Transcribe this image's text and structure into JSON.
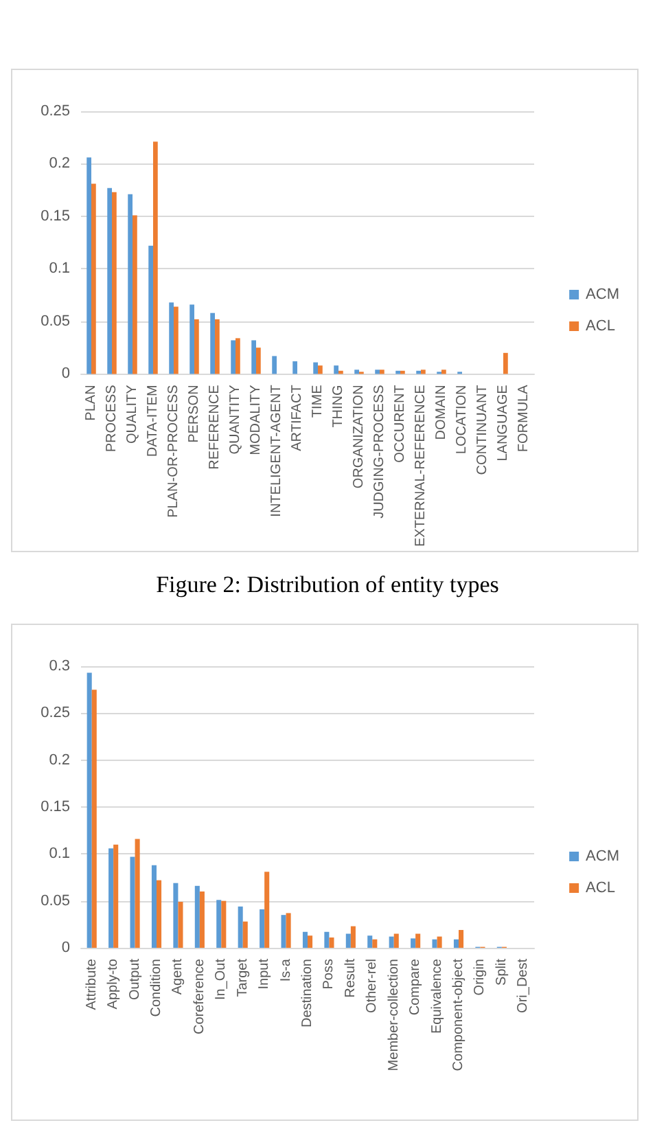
{
  "chart_data": [
    {
      "type": "bar",
      "categories": [
        "PLAN",
        "PROCESS",
        "QUALITY",
        "DATA-ITEM",
        "PLAN-OR-PROCESS",
        "PERSON",
        "REFERENCE",
        "QUANTITY",
        "MODALITY",
        "INTELIGENT-AGENT",
        "ARTIFACT",
        "TIME",
        "THING",
        "ORGANIZATION",
        "JUDGING-PROCESS",
        "OCCURENT",
        "EXTERNAL-REFERENCE",
        "DOMAIN",
        "LOCATION",
        "CONTINUANT",
        "LANGUAGE",
        "FORMULA"
      ],
      "series": [
        {
          "name": "ACM",
          "color": "#5b9bd5",
          "values": [
            0.206,
            0.177,
            0.171,
            0.122,
            0.068,
            0.066,
            0.058,
            0.032,
            0.032,
            0.017,
            0.012,
            0.011,
            0.008,
            0.004,
            0.004,
            0.003,
            0.003,
            0.002,
            0.002,
            0,
            0,
            0
          ]
        },
        {
          "name": "ACL",
          "color": "#ed7d31",
          "values": [
            0.181,
            0.173,
            0.151,
            0.221,
            0.064,
            0.052,
            0.052,
            0.034,
            0.025,
            0,
            0,
            0.008,
            0.003,
            0.002,
            0.004,
            0.003,
            0.004,
            0.004,
            0,
            0,
            0.02,
            0
          ]
        }
      ],
      "ylim": [
        0,
        0.25
      ],
      "yticks": [
        0,
        0.05,
        0.1,
        0.15,
        0.2,
        0.25
      ],
      "grid": "y",
      "legend": "right",
      "annotations": [
        "Figure 2: Distribution of entity types"
      ]
    },
    {
      "type": "bar",
      "categories": [
        "Attribute",
        "Apply-to",
        "Output",
        "Condition",
        "Agent",
        "Coreference",
        "In_Out",
        "Target",
        "Input",
        "Is-a",
        "Destination",
        "Poss",
        "Result",
        "Other-rel",
        "Member-collection",
        "Compare",
        "Equivalence",
        "Component-object",
        "Origin",
        "Split",
        "Ori_Dest"
      ],
      "series": [
        {
          "name": "ACM",
          "color": "#5b9bd5",
          "values": [
            0.293,
            0.106,
            0.097,
            0.088,
            0.069,
            0.066,
            0.051,
            0.044,
            0.041,
            0.035,
            0.017,
            0.017,
            0.015,
            0.013,
            0.012,
            0.01,
            0.009,
            0.009,
            0.001,
            0.001,
            0
          ]
        },
        {
          "name": "ACL",
          "color": "#ed7d31",
          "values": [
            0.275,
            0.11,
            0.116,
            0.072,
            0.049,
            0.06,
            0.05,
            0.028,
            0.081,
            0.037,
            0.013,
            0.011,
            0.023,
            0.009,
            0.015,
            0.015,
            0.012,
            0.019,
            0.001,
            0.001,
            0
          ]
        }
      ],
      "ylim": [
        0,
        0.3
      ],
      "yticks": [
        0,
        0.05,
        0.1,
        0.15,
        0.2,
        0.25,
        0.3
      ],
      "grid": "y",
      "legend": "right"
    }
  ]
}
